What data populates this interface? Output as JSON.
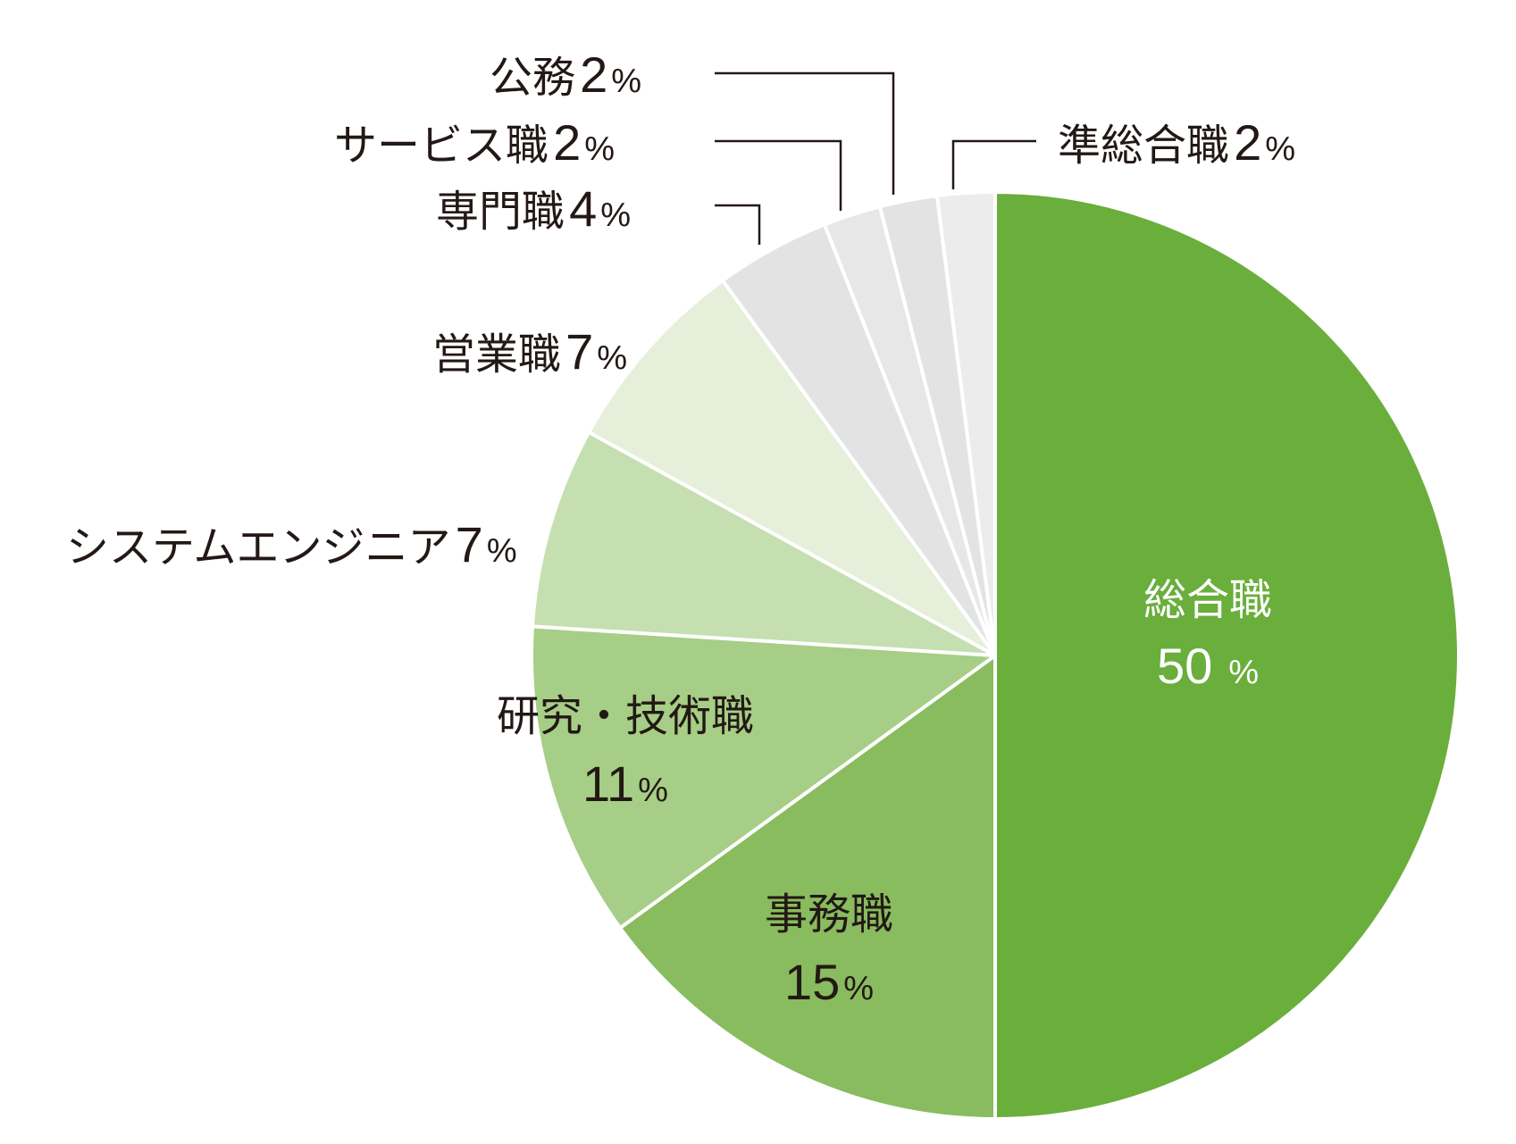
{
  "chart_data": {
    "type": "pie",
    "title": "",
    "start_angle_deg": 0,
    "direction": "clockwise",
    "slices": [
      {
        "label": "総合職",
        "value": 50,
        "color": "#6aae3c"
      },
      {
        "label": "事務職",
        "value": 15,
        "color": "#88bc5f"
      },
      {
        "label": "研究・技術職",
        "value": 11,
        "color": "#a6ce86"
      },
      {
        "label": "システムエンジニア",
        "value": 7,
        "color": "#c5dfb0"
      },
      {
        "label": "営業職",
        "value": 7,
        "color": "#e5efda"
      },
      {
        "label": "専門職",
        "value": 4,
        "color": "#e3e3e4"
      },
      {
        "label": "サービス職",
        "value": 2,
        "color": "#e7e7e8"
      },
      {
        "label": "公務",
        "value": 2,
        "color": "#e3e3e4"
      },
      {
        "label": "準総合職",
        "value": 2,
        "color": "#ececec"
      }
    ],
    "unit": "%",
    "legend": "none (labels placed next to slices)"
  },
  "labels": {
    "sogo": {
      "name": "総合職",
      "num": "50",
      "sign": "%"
    },
    "jimu": {
      "name": "事務職",
      "num": "15",
      "sign": "%"
    },
    "kenkyu": {
      "name": "研究・技術職",
      "num": "11",
      "sign": "%"
    },
    "se": {
      "name": "システムエンジニア",
      "num": "7",
      "sign": "%"
    },
    "eigyo": {
      "name": "営業職",
      "num": "7",
      "sign": "%"
    },
    "senmon": {
      "name": "専門職",
      "num": "4",
      "sign": "%"
    },
    "service": {
      "name": "サービス職",
      "num": "2",
      "sign": "%"
    },
    "koumu": {
      "name": "公務",
      "num": "2",
      "sign": "%"
    },
    "junsogo": {
      "name": "準総合職",
      "num": "2",
      "sign": "%"
    }
  }
}
